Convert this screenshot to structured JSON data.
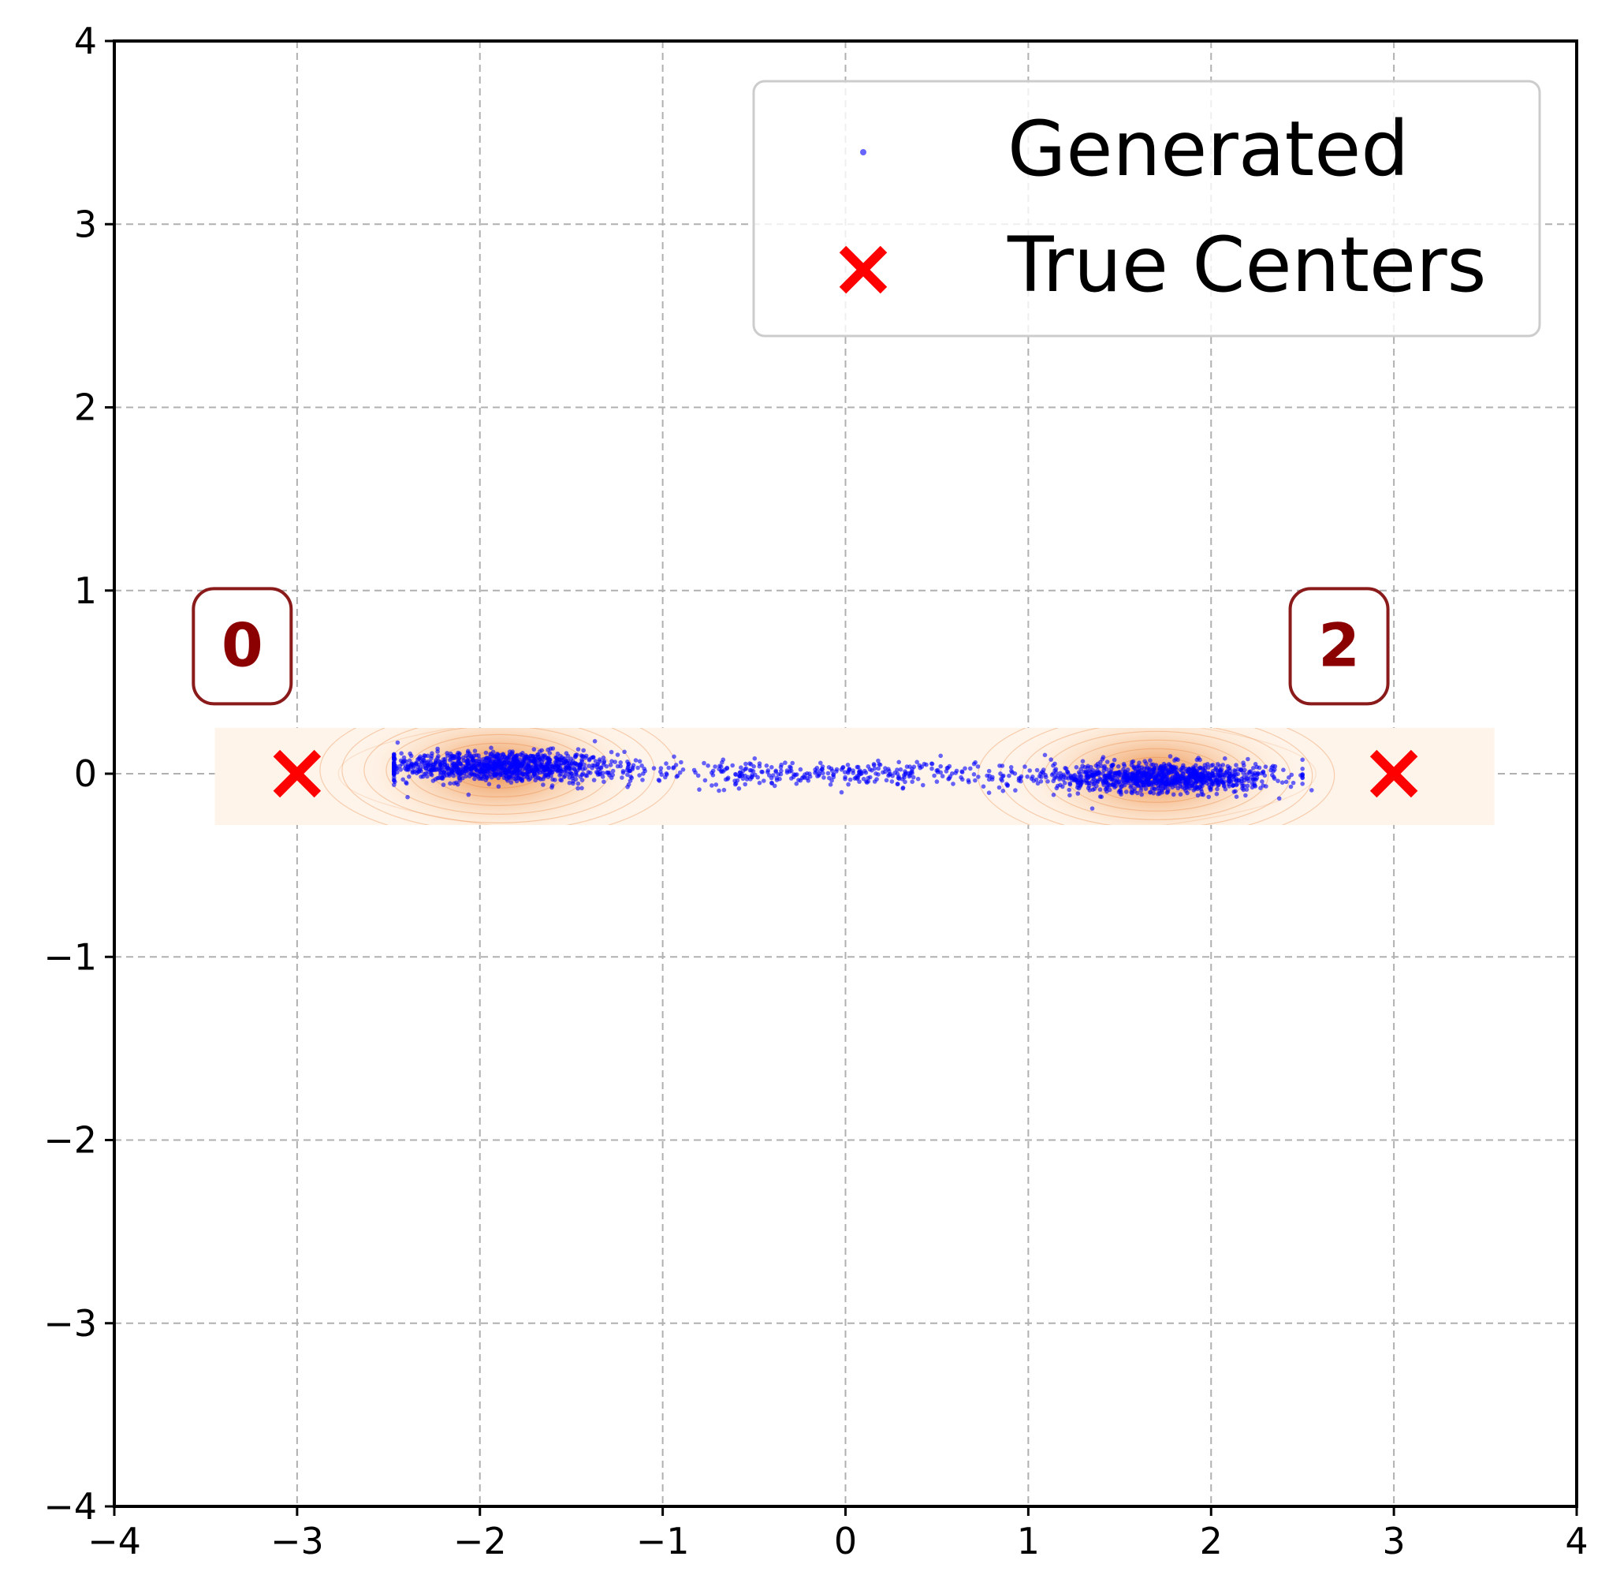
{
  "chart_data": {
    "type": "scatter",
    "title": "",
    "xlabel": "",
    "ylabel": "",
    "xlim": [
      -4,
      4
    ],
    "ylim": [
      -4,
      4
    ],
    "grid": true,
    "legend_position": "top-right",
    "xticks": [
      "−4",
      "−3",
      "−2",
      "−1",
      "0",
      "1",
      "2",
      "3",
      "4"
    ],
    "yticks": [
      "−4",
      "−3",
      "−2",
      "−1",
      "0",
      "1",
      "2",
      "3",
      "4"
    ],
    "xtick_values": [
      -4,
      -3,
      -2,
      -1,
      0,
      1,
      2,
      3,
      4
    ],
    "ytick_values": [
      -4,
      -3,
      -2,
      -1,
      0,
      1,
      2,
      3,
      4
    ],
    "density_band": {
      "x_range": [
        -3.45,
        3.55
      ],
      "y_range": [
        -0.28,
        0.25
      ],
      "peaks": [
        {
          "x": -1.9,
          "y": 0.02
        },
        {
          "x": 1.7,
          "y": -0.01
        }
      ],
      "color": "#e8823a"
    },
    "series": [
      {
        "name": "Generated",
        "kind": "points",
        "color": "#0000ff",
        "count": 2400,
        "components": [
          {
            "mean_x": -1.9,
            "sd_x": 0.32,
            "mean_y": 0.04,
            "sd_y": 0.04,
            "weight": 0.42,
            "min_x": -2.47,
            "max_x": 2.5
          },
          {
            "mean_x": 1.75,
            "sd_x": 0.3,
            "mean_y": -0.02,
            "sd_y": 0.04,
            "weight": 0.4,
            "min_x": -2.47,
            "max_x": 2.5
          },
          {
            "mean_x": -0.1,
            "sd_x": 0.9,
            "mean_y": 0.0,
            "sd_y": 0.035,
            "weight": 0.18,
            "min_x": -2.47,
            "max_x": 2.5
          }
        ],
        "outliers": [
          {
            "x": -2.45,
            "y": 0.17
          },
          {
            "x": 2.45,
            "y": -0.05
          },
          {
            "x": 2.55,
            "y": -0.09
          },
          {
            "x": 1.35,
            "y": -0.19
          },
          {
            "x": 2.35,
            "y": 0.04
          }
        ]
      },
      {
        "name": "True Centers",
        "kind": "markers",
        "marker": "x",
        "color": "#ff0000",
        "points": [
          {
            "x": -3,
            "y": 0
          },
          {
            "x": 3,
            "y": 0
          }
        ]
      }
    ],
    "annotations": [
      {
        "text": "0",
        "x": -3.3,
        "y": 0.7
      },
      {
        "text": "2",
        "x": 2.7,
        "y": 0.7
      }
    ],
    "legend": [
      {
        "label": "Generated",
        "marker": "dot",
        "color": "#0000ff"
      },
      {
        "label": "True Centers",
        "marker": "x",
        "color": "#ff0000"
      }
    ]
  }
}
